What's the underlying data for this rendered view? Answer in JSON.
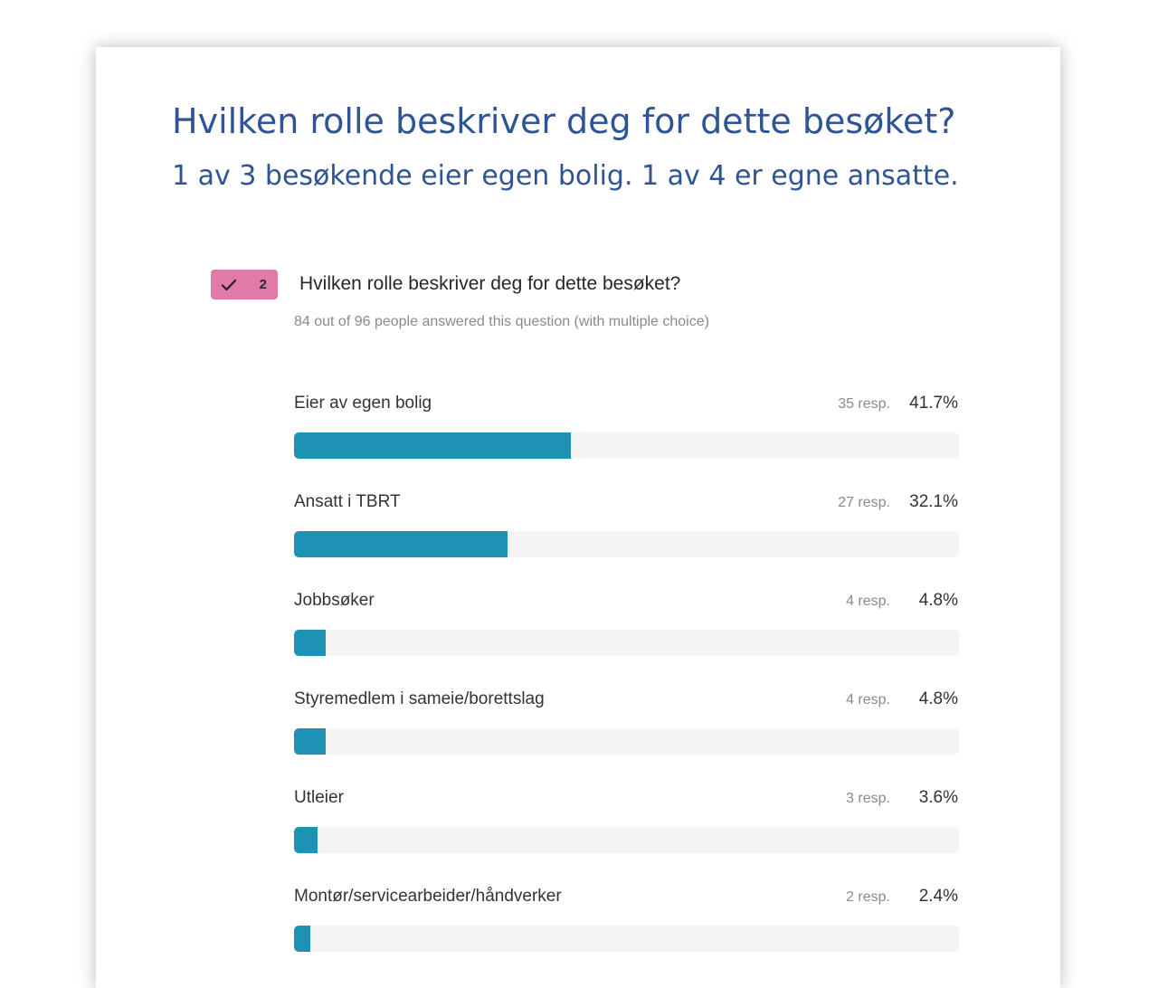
{
  "slide": {
    "title": "Hvilken rolle beskriver deg for dette besøket?",
    "subtitle": "1 av 3 besøkende eier egen bolig. 1 av 4 er egne ansatte."
  },
  "question": {
    "badge_icon": "check-icon",
    "badge_number": "2",
    "badge_color": "#e07aa8",
    "title": "Hvilken rolle beskriver deg for dette besøket?",
    "meta": "84 out of 96 people answered this question (with multiple choice)"
  },
  "colors": {
    "title": "#2f5496",
    "bar_fill": "#1e92b5",
    "bar_track": "#f4f4f4"
  },
  "chart_data": {
    "type": "bar",
    "orientation": "horizontal",
    "xlim": [
      0,
      100
    ],
    "categories": [
      "Eier av egen bolig",
      "Ansatt i TBRT",
      "Jobbsøker",
      "Styremedlem i sameie/borettslag",
      "Utleier",
      "Montør/servicearbeider/håndverker"
    ],
    "responses": [
      "35 resp.",
      "27 resp.",
      "4 resp.",
      "4 resp.",
      "3 resp.",
      "2 resp."
    ],
    "percent_labels": [
      "41.7%",
      "32.1%",
      "4.8%",
      "4.8%",
      "3.6%",
      "2.4%"
    ],
    "values": [
      41.7,
      32.1,
      4.8,
      4.8,
      3.6,
      2.4
    ]
  }
}
